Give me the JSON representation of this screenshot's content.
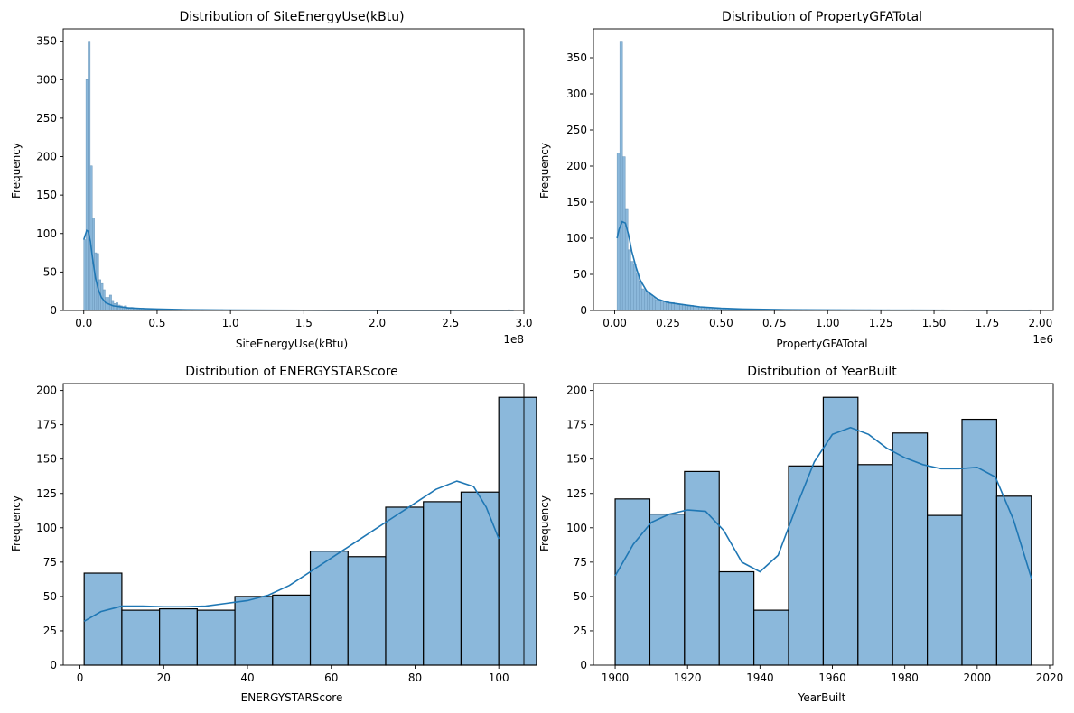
{
  "chart_data": [
    {
      "type": "bar",
      "title": "Distribution of SiteEnergyUse(kBtu)",
      "xlabel": "SiteEnergyUse(kBtu)",
      "ylabel": "Frequency",
      "x_multiplier_label": "1e8",
      "xlim": [
        -0.14,
        3.0
      ],
      "ylim": [
        0,
        366
      ],
      "xticks": [
        0.0,
        0.5,
        1.0,
        1.5,
        2.0,
        2.5,
        3.0
      ],
      "xtick_labels": [
        "0.0",
        "0.5",
        "1.0",
        "1.5",
        "2.0",
        "2.5",
        "3.0"
      ],
      "yticks": [
        0,
        50,
        100,
        150,
        200,
        250,
        300,
        350
      ],
      "ytick_labels": [
        "0",
        "50",
        "100",
        "150",
        "200",
        "250",
        "300",
        "350"
      ],
      "bin_start": 0.0,
      "bin_width": 0.0146,
      "values": [
        92,
        300,
        350,
        188,
        120,
        75,
        74,
        40,
        35,
        27,
        17,
        17,
        20,
        13,
        9,
        10,
        7,
        6,
        5,
        6,
        4,
        3,
        4,
        2,
        3,
        2,
        2,
        3,
        2,
        2,
        2,
        1,
        2,
        1,
        1,
        1,
        1,
        1,
        1,
        1,
        1,
        0,
        1,
        1,
        0,
        1,
        0,
        1,
        0,
        0,
        1,
        0,
        0,
        0,
        0,
        1,
        0,
        0,
        0,
        0,
        0,
        0,
        0,
        0,
        1,
        0,
        0,
        0,
        0,
        0,
        0,
        0,
        0,
        0,
        0,
        0,
        0,
        0,
        0,
        0,
        0,
        0,
        0,
        0,
        0,
        0,
        0,
        0,
        0,
        0,
        0,
        0,
        0,
        0,
        0,
        0,
        0,
        0,
        0,
        0,
        0,
        0,
        0,
        0,
        0,
        0,
        0,
        0,
        0,
        0,
        0,
        0,
        0,
        0,
        0,
        0,
        0,
        0,
        0,
        0,
        0,
        0,
        0,
        0,
        0,
        0,
        0,
        0,
        0,
        0,
        0,
        0,
        0,
        0,
        0,
        0,
        0,
        0,
        0,
        0,
        0,
        0,
        0,
        0,
        0,
        0,
        0,
        0,
        0,
        0,
        0,
        0,
        0,
        0,
        0,
        0,
        0,
        0,
        0,
        0,
        0,
        0,
        0,
        0,
        0,
        0,
        0,
        0,
        0,
        0,
        0,
        0,
        0,
        0,
        0,
        0,
        0,
        0,
        0,
        0,
        0,
        0,
        0,
        0,
        0,
        0,
        0,
        0,
        0,
        0,
        0,
        0,
        0,
        0,
        0,
        0,
        0,
        0,
        1
      ],
      "kde": [
        [
          0.0,
          92
        ],
        [
          0.01,
          98
        ],
        [
          0.02,
          104
        ],
        [
          0.03,
          103
        ],
        [
          0.045,
          90
        ],
        [
          0.06,
          68
        ],
        [
          0.08,
          42
        ],
        [
          0.1,
          27
        ],
        [
          0.12,
          17
        ],
        [
          0.15,
          10
        ],
        [
          0.2,
          6
        ],
        [
          0.3,
          3.5
        ],
        [
          0.4,
          2.5
        ],
        [
          0.5,
          1.8
        ],
        [
          0.7,
          1
        ],
        [
          1.0,
          0.6
        ],
        [
          1.5,
          0.3
        ],
        [
          2.0,
          0.2
        ],
        [
          2.5,
          0.2
        ],
        [
          2.93,
          0.2
        ]
      ],
      "color": "#1f77b4",
      "bar_fill": "#8bb8db",
      "bar_edge": "#6a96ba",
      "grid": false
    },
    {
      "type": "bar",
      "title": "Distribution of PropertyGFATotal",
      "xlabel": "PropertyGFATotal",
      "ylabel": "Frequency",
      "x_multiplier_label": "1e6",
      "xlim": [
        -0.1,
        2.06
      ],
      "ylim": [
        0,
        390
      ],
      "xticks": [
        0.0,
        0.25,
        0.5,
        0.75,
        1.0,
        1.25,
        1.5,
        1.75,
        2.0
      ],
      "xtick_labels": [
        "0.00",
        "0.25",
        "0.50",
        "0.75",
        "1.00",
        "1.25",
        "1.50",
        "1.75",
        "2.00"
      ],
      "yticks": [
        0,
        50,
        100,
        150,
        200,
        250,
        300,
        350
      ],
      "ytick_labels": [
        "0",
        "50",
        "100",
        "150",
        "200",
        "250",
        "300",
        "350"
      ],
      "bin_start": 0.011,
      "bin_width": 0.0128,
      "values": [
        218,
        373,
        213,
        140,
        84,
        68,
        64,
        52,
        41,
        30,
        28,
        25,
        22,
        18,
        15,
        15,
        13,
        12,
        13,
        10,
        11,
        9,
        8,
        9,
        8,
        7,
        6,
        7,
        6,
        5,
        5,
        5,
        4,
        4,
        4,
        4,
        3,
        3,
        3,
        3,
        3,
        2,
        2,
        2,
        2,
        2,
        2,
        2,
        1,
        2,
        1,
        1,
        1,
        1,
        1,
        1,
        1,
        1,
        1,
        1,
        1,
        0,
        1,
        1,
        0,
        1,
        0,
        1,
        0,
        1,
        0,
        1,
        0,
        0,
        1,
        0,
        0,
        1,
        0,
        0,
        0,
        1,
        0,
        0,
        0,
        0,
        1,
        0,
        0,
        0,
        0,
        0,
        1,
        0,
        0,
        0,
        0,
        0,
        0,
        1,
        0,
        0,
        0,
        0,
        0,
        0,
        0,
        0,
        1,
        0,
        0,
        0,
        0,
        0,
        0,
        0,
        0,
        0,
        0,
        1,
        0,
        0,
        0,
        0,
        0,
        0,
        0,
        0,
        0,
        0,
        0,
        0,
        0,
        0,
        0,
        0,
        0,
        0,
        0,
        0,
        0,
        0,
        0,
        0,
        0,
        0,
        0,
        0,
        0,
        0,
        0,
        1
      ],
      "kde": [
        [
          0.011,
          100
        ],
        [
          0.02,
          112
        ],
        [
          0.035,
          123
        ],
        [
          0.05,
          121
        ],
        [
          0.065,
          105
        ],
        [
          0.08,
          82
        ],
        [
          0.1,
          60
        ],
        [
          0.12,
          42
        ],
        [
          0.15,
          27
        ],
        [
          0.2,
          16
        ],
        [
          0.25,
          11
        ],
        [
          0.3,
          9
        ],
        [
          0.35,
          7
        ],
        [
          0.4,
          5
        ],
        [
          0.5,
          3
        ],
        [
          0.6,
          2
        ],
        [
          0.8,
          1
        ],
        [
          1.0,
          0.7
        ],
        [
          1.3,
          0.4
        ],
        [
          1.6,
          0.3
        ],
        [
          1.95,
          0.2
        ]
      ],
      "color": "#1f77b4",
      "bar_fill": "#8bb8db",
      "bar_edge": "#6a96ba",
      "grid": false
    },
    {
      "type": "bar",
      "title": "Distribution of ENERGYSTARScore",
      "xlabel": "ENERGYSTARScore",
      "ylabel": "Frequency",
      "x_multiplier_label": "",
      "xlim": [
        -4,
        106
      ],
      "ylim": [
        0,
        205
      ],
      "xticks": [
        0,
        20,
        40,
        60,
        80,
        100
      ],
      "xtick_labels": [
        "0",
        "20",
        "40",
        "60",
        "80",
        "100"
      ],
      "yticks": [
        0,
        25,
        50,
        75,
        100,
        125,
        150,
        175,
        200
      ],
      "ytick_labels": [
        "0",
        "25",
        "50",
        "75",
        "100",
        "125",
        "150",
        "175",
        "200"
      ],
      "bin_start": 1,
      "bin_width": 9,
      "values": [
        67,
        40,
        41,
        40,
        50,
        51,
        83,
        79,
        115,
        119,
        126,
        195
      ],
      "kde": [
        [
          1,
          32
        ],
        [
          5,
          39
        ],
        [
          10,
          43
        ],
        [
          15,
          43
        ],
        [
          20,
          42.5
        ],
        [
          25,
          42.5
        ],
        [
          30,
          43
        ],
        [
          35,
          45
        ],
        [
          40,
          47
        ],
        [
          45,
          51
        ],
        [
          50,
          58
        ],
        [
          55,
          68
        ],
        [
          60,
          78
        ],
        [
          65,
          88
        ],
        [
          70,
          98
        ],
        [
          75,
          108
        ],
        [
          80,
          118
        ],
        [
          85,
          128
        ],
        [
          90,
          134
        ],
        [
          94,
          130
        ],
        [
          97,
          115
        ],
        [
          100,
          92
        ]
      ],
      "color": "#1f77b4",
      "bar_fill": "#8bb8db",
      "bar_edge": "#000000",
      "grid": false
    },
    {
      "type": "bar",
      "title": "Distribution of YearBuilt",
      "xlabel": "YearBuilt",
      "ylabel": "Frequency",
      "x_multiplier_label": "",
      "xlim": [
        1894,
        2021
      ],
      "ylim": [
        0,
        205
      ],
      "xticks": [
        1900,
        1920,
        1940,
        1960,
        1980,
        2000,
        2020
      ],
      "xtick_labels": [
        "1900",
        "1920",
        "1940",
        "1960",
        "1980",
        "2000",
        "2020"
      ],
      "yticks": [
        0,
        25,
        50,
        75,
        100,
        125,
        150,
        175,
        200
      ],
      "ytick_labels": [
        "0",
        "25",
        "50",
        "75",
        "100",
        "125",
        "150",
        "175",
        "200"
      ],
      "bin_start": 1900,
      "bin_width": 9.58,
      "values": [
        121,
        110,
        141,
        68,
        40,
        145,
        195,
        146,
        169,
        109,
        179,
        123
      ],
      "kde": [
        [
          1900,
          65
        ],
        [
          1905,
          88
        ],
        [
          1910,
          104
        ],
        [
          1915,
          110
        ],
        [
          1920,
          113
        ],
        [
          1925,
          112
        ],
        [
          1930,
          98
        ],
        [
          1935,
          75
        ],
        [
          1940,
          68
        ],
        [
          1945,
          80
        ],
        [
          1950,
          115
        ],
        [
          1955,
          148
        ],
        [
          1960,
          168
        ],
        [
          1965,
          173
        ],
        [
          1970,
          168
        ],
        [
          1975,
          158
        ],
        [
          1980,
          151
        ],
        [
          1985,
          146
        ],
        [
          1990,
          143
        ],
        [
          1995,
          143
        ],
        [
          2000,
          144
        ],
        [
          2005,
          137
        ],
        [
          2010,
          106
        ],
        [
          2015,
          63
        ]
      ],
      "color": "#1f77b4",
      "bar_fill": "#8bb8db",
      "bar_edge": "#000000",
      "grid": false
    }
  ]
}
